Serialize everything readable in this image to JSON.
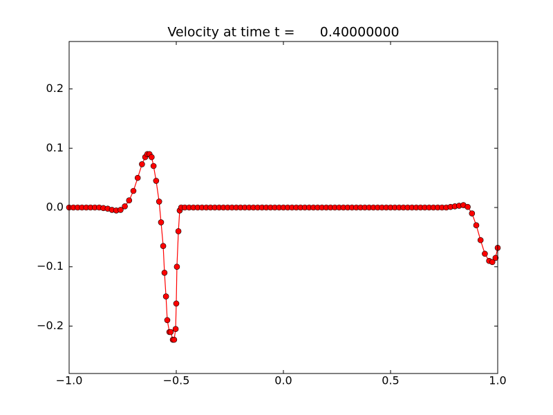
{
  "chart_data": {
    "type": "line",
    "title": "Velocity at time t =      0.40000000",
    "color": "#ff0000",
    "marker_edge_color": "#000000",
    "x": [
      -1.0,
      -0.98,
      -0.96,
      -0.94,
      -0.92,
      -0.9,
      -0.88,
      -0.86,
      -0.84,
      -0.82,
      -0.8,
      -0.78,
      -0.76,
      -0.74,
      -0.72,
      -0.7,
      -0.68,
      -0.66,
      -0.645,
      -0.635,
      -0.625,
      -0.615,
      -0.606,
      -0.594,
      -0.58,
      -0.571,
      -0.561,
      -0.555,
      -0.548,
      -0.542,
      -0.532,
      -0.526,
      -0.516,
      -0.51,
      -0.503,
      -0.5,
      -0.497,
      -0.49,
      -0.484,
      -0.477,
      -0.46,
      -0.44,
      -0.42,
      -0.4,
      -0.38,
      -0.36,
      -0.34,
      -0.32,
      -0.3,
      -0.28,
      -0.26,
      -0.24,
      -0.22,
      -0.2,
      -0.18,
      -0.16,
      -0.14,
      -0.12,
      -0.1,
      -0.08,
      -0.06,
      -0.04,
      -0.02,
      0,
      0.02,
      0.04,
      0.06,
      0.08,
      0.1,
      0.12,
      0.14,
      0.16,
      0.18,
      0.2,
      0.22,
      0.24,
      0.26,
      0.28,
      0.3,
      0.32,
      0.34,
      0.36,
      0.38,
      0.4,
      0.42,
      0.44,
      0.46,
      0.48,
      0.5,
      0.52,
      0.54,
      0.56,
      0.58,
      0.6,
      0.62,
      0.64,
      0.66,
      0.68,
      0.7,
      0.72,
      0.74,
      0.76,
      0.78,
      0.8,
      0.82,
      0.84,
      0.86,
      0.88,
      0.9,
      0.92,
      0.94,
      0.96,
      0.975,
      0.99,
      1.0
    ],
    "values": [
      0,
      0,
      0,
      0,
      0,
      0,
      0,
      0,
      -0.001,
      -0.002,
      -0.004,
      -0.005,
      -0.004,
      0.002,
      0.012,
      0.028,
      0.05,
      0.073,
      0.085,
      0.09,
      0.09,
      0.085,
      0.07,
      0.045,
      0.01,
      -0.025,
      -0.065,
      -0.11,
      -0.15,
      -0.19,
      -0.21,
      -0.21,
      -0.223,
      -0.223,
      -0.205,
      -0.162,
      -0.1,
      -0.04,
      -0.005,
      0,
      0,
      0,
      0,
      0,
      0,
      0,
      0,
      0,
      0,
      0,
      0,
      0,
      0,
      0,
      0,
      0,
      0,
      0,
      0,
      0,
      0,
      0,
      0,
      0,
      0,
      0,
      0,
      0,
      0,
      0,
      0,
      0,
      0,
      0,
      0,
      0,
      0,
      0,
      0,
      0,
      0,
      0,
      0,
      0,
      0,
      0,
      0,
      0,
      0,
      0,
      0,
      0,
      0,
      0,
      0,
      0,
      0,
      0,
      0,
      0,
      0,
      0,
      0.001,
      0.002,
      0.003,
      0.004,
      0.001,
      -0.01,
      -0.03,
      -0.055,
      -0.078,
      -0.09,
      -0.092,
      -0.085,
      -0.068
    ],
    "xlim": [
      -1.0,
      1.0
    ],
    "xticks": [
      {
        "value": -1.0,
        "label": "−1.0"
      },
      {
        "value": -0.5,
        "label": "−0.5"
      },
      {
        "value": 0,
        "label": "0.0"
      },
      {
        "value": 0.5,
        "label": "0.5"
      },
      {
        "value": 1.0,
        "label": "1.0"
      }
    ],
    "ylim": [
      -0.28,
      0.28
    ],
    "yticks": [
      {
        "value": -0.2,
        "label": "−0.2"
      },
      {
        "value": -0.1,
        "label": "−0.1"
      },
      {
        "value": 0,
        "label": "0.0"
      },
      {
        "value": 0.1,
        "label": "0.1"
      },
      {
        "value": 0.2,
        "label": "0.2"
      }
    ],
    "grid": false
  }
}
